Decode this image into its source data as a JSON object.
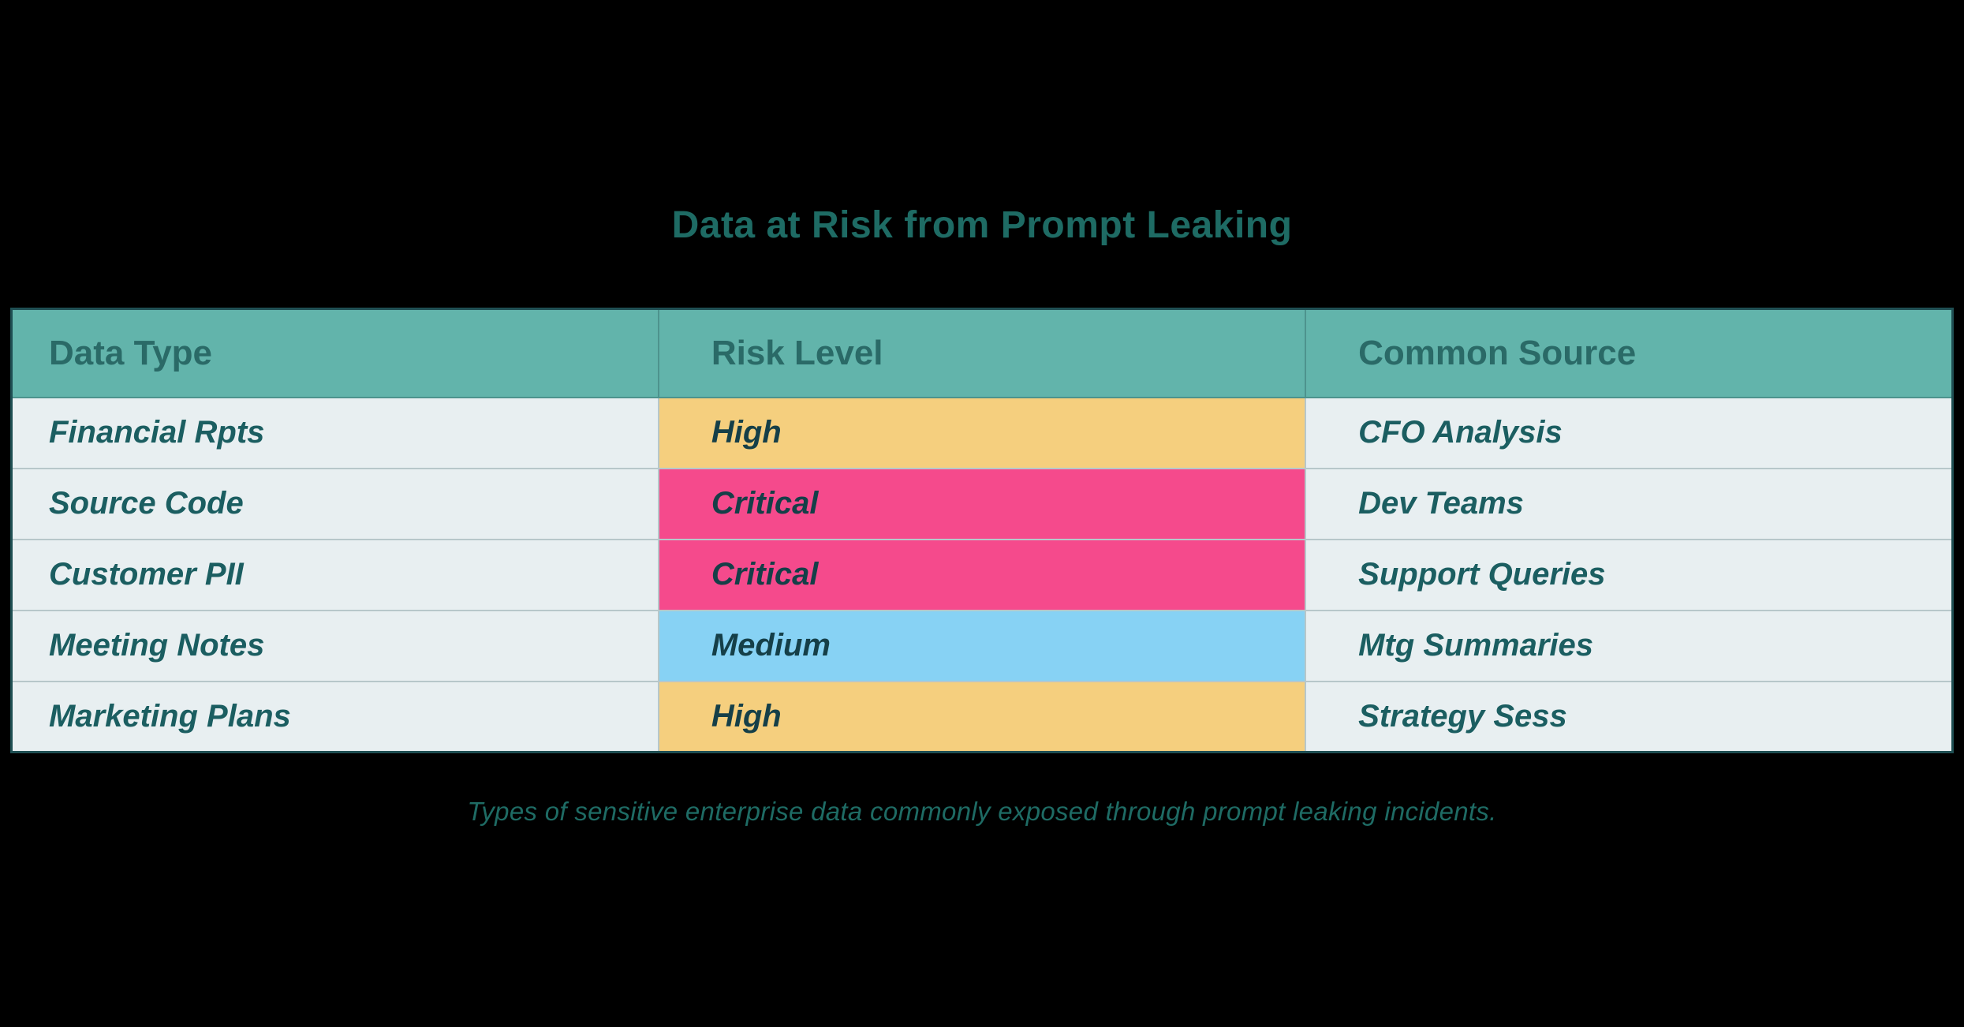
{
  "title": "Data at Risk from Prompt Leaking",
  "caption": "Types of sensitive enterprise data commonly exposed through prompt leaking incidents.",
  "chart_data": {
    "type": "table",
    "title": "Data at Risk from Prompt Leaking",
    "columns": [
      "Data Type",
      "Risk Level",
      "Common Source"
    ],
    "rows": [
      {
        "data_type": "Financial Rpts",
        "risk_level": "High",
        "common_source": "CFO Analysis"
      },
      {
        "data_type": "Source Code",
        "risk_level": "Critical",
        "common_source": "Dev Teams"
      },
      {
        "data_type": "Customer PII",
        "risk_level": "Critical",
        "common_source": "Support Queries"
      },
      {
        "data_type": "Meeting Notes",
        "risk_level": "Medium",
        "common_source": "Mtg Summaries"
      },
      {
        "data_type": "Marketing Plans",
        "risk_level": "High",
        "common_source": "Strategy Sess"
      }
    ],
    "caption": "Types of sensitive enterprise data commonly exposed through prompt leaking incidents."
  },
  "colors": {
    "background": "#000000",
    "title_text": "#1e6b64",
    "header_bg": "#62b4ab",
    "header_text": "#2a6a67",
    "row_bg": "#e8eff1",
    "cell_text": "#1b5e61",
    "risk_text": "#153f48",
    "risk_high": "#f5cf7e",
    "risk_critical": "#f54a8c",
    "risk_medium": "#87d2f4",
    "border_outer": "#1f4f53",
    "border_inner": "#b7c7ca",
    "border_header": "#4d938d"
  }
}
